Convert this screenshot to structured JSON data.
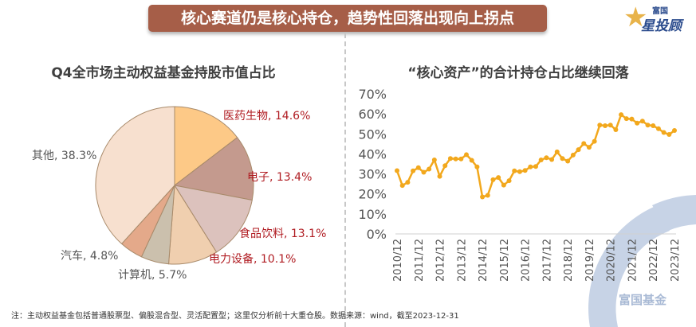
{
  "header": {
    "title": "核心赛道仍是核心持仓，趋势性回落出现向上拐点",
    "logo_top": "富国",
    "logo_main": "星投顾"
  },
  "watermark": "富国基金",
  "footnote": "注：主动权益基金包括普通股票型、偏股混合型、灵活配置型；这里仅分析前十大重仓股。数据来源：wind，截至2023-12-31",
  "chart_data": [
    {
      "type": "pie",
      "title": "Q4全市场主动权益基金持股市值占比",
      "slices": [
        {
          "label": "医药生物",
          "value": 14.6,
          "display": "医药生物, 14.6%",
          "color": "#fdc987",
          "label_color": "#b01c22"
        },
        {
          "label": "电子",
          "value": 13.4,
          "display": "电子, 13.4%",
          "color": "#c49a8e",
          "label_color": "#b01c22"
        },
        {
          "label": "食品饮料",
          "value": 13.1,
          "display": "食品饮料, 13.1%",
          "color": "#dcc2bd",
          "label_color": "#b01c22"
        },
        {
          "label": "电力设备",
          "value": 10.1,
          "display": "电力设备, 10.1%",
          "color": "#f0cfaf",
          "label_color": "#b01c22"
        },
        {
          "label": "计算机",
          "value": 5.7,
          "display": "计算机, 5.7%",
          "color": "#cbc0ad",
          "label_color": "#555555"
        },
        {
          "label": "汽车",
          "value": 4.8,
          "display": "汽车, 4.8%",
          "color": "#e4a98a",
          "label_color": "#555555"
        },
        {
          "label": "其他",
          "value": 38.3,
          "display": "其他, 38.3%",
          "color": "#f7e0cf",
          "label_color": "#555555"
        }
      ]
    },
    {
      "type": "line",
      "title": "“核心资产”的合计持仓占比继续回落",
      "ylim": [
        0,
        70
      ],
      "yticks": [
        "0%",
        "10%",
        "20%",
        "30%",
        "40%",
        "50%",
        "60%",
        "70%"
      ],
      "xticks": [
        "2010/12",
        "2011/12",
        "2012/12",
        "2013/12",
        "2014/12",
        "2015/12",
        "2016/12",
        "2017/12",
        "2018/12",
        "2019/12",
        "2020/12",
        "2021/12",
        "2022/12",
        "2023/12"
      ],
      "x_start": "2010/12",
      "frequency": "quarterly",
      "color": "#f2a81d",
      "grid": false,
      "values": [
        31.6,
        24.2,
        25.8,
        31.5,
        33.1,
        30.8,
        32.4,
        37.0,
        28.8,
        34.1,
        37.7,
        37.5,
        37.5,
        39.6,
        36.8,
        33.5,
        18.5,
        19.3,
        27.1,
        28.2,
        24.4,
        26.6,
        31.5,
        31.1,
        31.7,
        33.5,
        33.7,
        37.0,
        38.1,
        37.2,
        41.0,
        37.7,
        36.4,
        39.4,
        42.1,
        45.2,
        43.3,
        46.3,
        54.4,
        54.1,
        54.4,
        52.1,
        59.6,
        57.6,
        57.4,
        55.4,
        56.4,
        54.4,
        54.1,
        52.6,
        50.7,
        49.7,
        51.7
      ]
    }
  ]
}
